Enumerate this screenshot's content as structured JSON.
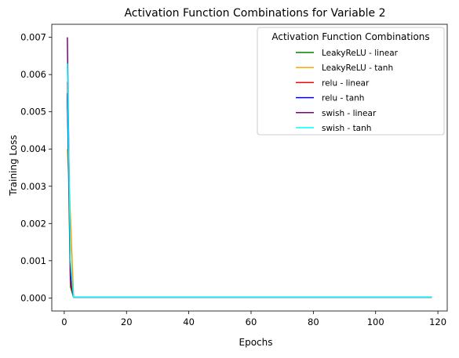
{
  "chart_data": {
    "type": "line",
    "title": "Activation Function Combinations for Variable 2",
    "xlabel": "Epochs",
    "ylabel": "Training Loss",
    "xlim": [
      -4,
      123
    ],
    "ylim": [
      -0.00035,
      0.00735
    ],
    "x_ticks": [
      0,
      20,
      40,
      60,
      80,
      100,
      120
    ],
    "x_tick_labels": [
      "0",
      "20",
      "40",
      "60",
      "80",
      "100",
      "120"
    ],
    "y_ticks": [
      0.0,
      0.001,
      0.002,
      0.003,
      0.004,
      0.005,
      0.006,
      0.007
    ],
    "y_tick_labels": [
      "0.000",
      "0.001",
      "0.002",
      "0.003",
      "0.004",
      "0.005",
      "0.006",
      "0.007"
    ],
    "grid": false,
    "legend": {
      "title": "Activation Function Combinations",
      "placement": "top-right"
    },
    "series": [
      {
        "name": "LeakyReLU - linear",
        "color": "#008000",
        "x": [
          1,
          2,
          3,
          118
        ],
        "y": [
          0.0054,
          0.0003,
          2e-05,
          2e-05
        ]
      },
      {
        "name": "LeakyReLU - tanh",
        "color": "#ffa500",
        "x": [
          1,
          2,
          3,
          118
        ],
        "y": [
          0.004,
          0.0022,
          2e-05,
          2e-05
        ]
      },
      {
        "name": "relu - linear",
        "color": "#ff0000",
        "x": [
          1,
          2,
          3,
          118
        ],
        "y": [
          0.0058,
          0.0004,
          2e-05,
          2e-05
        ]
      },
      {
        "name": "relu - tanh",
        "color": "#0000ff",
        "x": [
          1,
          2,
          3,
          118
        ],
        "y": [
          0.0055,
          0.0008,
          2e-05,
          2e-05
        ]
      },
      {
        "name": "swish - linear",
        "color": "#800080",
        "x": [
          1,
          2,
          3,
          118
        ],
        "y": [
          0.007,
          0.0005,
          2e-05,
          2e-05
        ]
      },
      {
        "name": "swish - tanh",
        "color": "#00ffff",
        "x": [
          1,
          2,
          3,
          118
        ],
        "y": [
          0.0063,
          0.001,
          2e-05,
          2e-05
        ]
      }
    ]
  }
}
